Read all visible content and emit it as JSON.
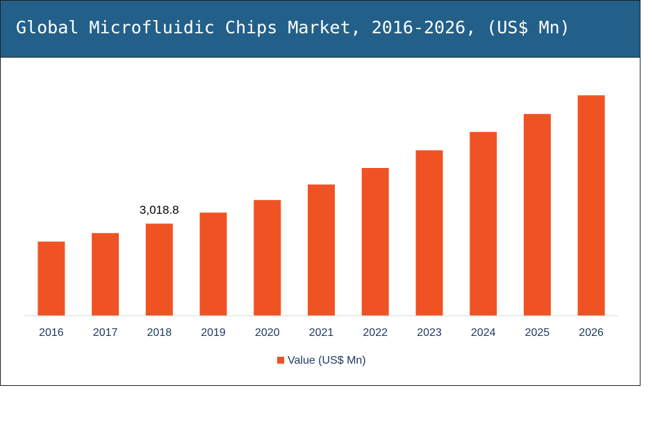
{
  "title": "Global Microfluidic Chips Market, 2016-2026, (US$ Mn)",
  "colors": {
    "header": "#22608a",
    "bar": "#f05323"
  },
  "chart_data": {
    "type": "bar",
    "title": "Global Microfluidic Chips Market, 2016-2026, (US$ Mn)",
    "categories": [
      "2016",
      "2017",
      "2018",
      "2019",
      "2020",
      "2021",
      "2022",
      "2023",
      "2024",
      "2025",
      "2026"
    ],
    "series": [
      {
        "name": "Value (US$ Mn)",
        "values": [
          2430,
          2710,
          3018.8,
          3380,
          3790,
          4300,
          4840,
          5420,
          6020,
          6610,
          7220
        ]
      }
    ],
    "data_labels": [
      {
        "category": "2018",
        "text": "3,018.8"
      }
    ],
    "ylim": [
      0,
      7500
    ],
    "grid": false,
    "legend_position": "bottom-center",
    "xlabel": "",
    "ylabel": ""
  }
}
